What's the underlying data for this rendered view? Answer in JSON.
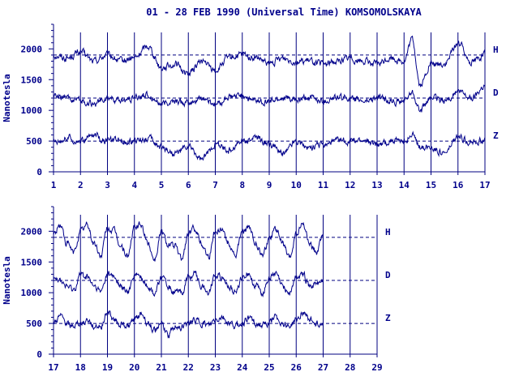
{
  "title": "01 - 28 FEB 1990 (Universal Time) KOMSOMOLSKAYA",
  "colors": {
    "ink": "#000080",
    "text": "#00008b",
    "data": "#00008b"
  },
  "chart_data": [
    {
      "type": "line",
      "title": "01 - 28 FEB 1990 (Universal Time) KOMSOMOLSKAYA",
      "ylabel": "Nanotesla",
      "xlabel": "",
      "xlim": [
        1,
        17
      ],
      "ylim": [
        0,
        2400
      ],
      "yticks": [
        0,
        500,
        1000,
        1500,
        2000
      ],
      "xticks": [
        "1",
        "2",
        "3",
        "4",
        "5",
        "6",
        "7",
        "8",
        "9",
        "10",
        "11",
        "12",
        "13",
        "14",
        "15",
        "16",
        "17"
      ],
      "reference_lines": [
        {
          "component": "H",
          "value": 1900
        },
        {
          "component": "D",
          "value": 1200
        },
        {
          "component": "Z",
          "value": 500
        }
      ],
      "series": [
        {
          "name": "H",
          "baseline": 1900,
          "x": [
            1,
            1.5,
            2,
            2.5,
            3,
            3.5,
            4,
            4.5,
            5,
            5.5,
            6,
            6.5,
            7,
            7.5,
            8,
            8.5,
            9,
            9.5,
            10,
            10.5,
            11,
            11.5,
            12,
            12.5,
            13,
            13.5,
            14,
            14.3,
            14.6,
            15,
            15.5,
            16,
            16.5,
            17
          ],
          "values": [
            1900,
            1850,
            1950,
            1800,
            1900,
            1800,
            1850,
            2050,
            1700,
            1750,
            1600,
            1800,
            1650,
            1850,
            1900,
            1850,
            1750,
            1850,
            1800,
            1800,
            1750,
            1800,
            1850,
            1800,
            1750,
            1850,
            1800,
            2150,
            1400,
            1750,
            1750,
            2100,
            1800,
            1900
          ]
        },
        {
          "name": "D",
          "baseline": 1200,
          "x": [
            1,
            1.5,
            2,
            2.5,
            3,
            3.5,
            4,
            4.5,
            5,
            5.5,
            6,
            6.5,
            7,
            7.5,
            8,
            8.5,
            9,
            9.5,
            10,
            10.5,
            11,
            11.5,
            12,
            12.5,
            13,
            13.5,
            14,
            14.3,
            14.6,
            15,
            15.5,
            16,
            16.5,
            17
          ],
          "values": [
            1250,
            1200,
            1150,
            1100,
            1200,
            1150,
            1200,
            1250,
            1100,
            1150,
            1100,
            1200,
            1100,
            1200,
            1250,
            1150,
            1150,
            1200,
            1150,
            1200,
            1150,
            1200,
            1200,
            1150,
            1200,
            1150,
            1150,
            1300,
            1000,
            1200,
            1150,
            1300,
            1200,
            1400
          ]
        },
        {
          "name": "Z",
          "baseline": 500,
          "x": [
            1,
            1.5,
            2,
            2.5,
            3,
            3.5,
            4,
            4.5,
            5,
            5.5,
            6,
            6.5,
            7,
            7.5,
            8,
            8.5,
            9,
            9.5,
            10,
            10.5,
            11,
            11.5,
            12,
            12.5,
            13,
            13.5,
            14,
            14.3,
            14.6,
            15,
            15.5,
            16,
            16.5,
            17
          ],
          "values": [
            500,
            550,
            500,
            600,
            500,
            500,
            500,
            550,
            400,
            300,
            400,
            200,
            450,
            350,
            500,
            550,
            450,
            300,
            500,
            400,
            450,
            500,
            500,
            500,
            450,
            500,
            500,
            600,
            400,
            400,
            300,
            550,
            500,
            500
          ]
        }
      ]
    },
    {
      "type": "line",
      "title": "",
      "ylabel": "Nanotesla",
      "xlabel": "",
      "xlim": [
        17,
        29
      ],
      "ylim": [
        0,
        2400
      ],
      "yticks": [
        0,
        500,
        1000,
        1500,
        2000
      ],
      "xticks": [
        "17",
        "18",
        "19",
        "20",
        "21",
        "22",
        "23",
        "24",
        "25",
        "26",
        "27",
        "28",
        "29"
      ],
      "reference_lines": [
        {
          "component": "H",
          "value": 1900
        },
        {
          "component": "D",
          "value": 1200
        },
        {
          "component": "Z",
          "value": 500
        }
      ],
      "series": [
        {
          "name": "H",
          "baseline": 1900,
          "x": [
            17,
            17.25,
            17.5,
            17.75,
            18,
            18.25,
            18.5,
            18.75,
            19,
            19.25,
            19.5,
            19.75,
            20,
            20.25,
            20.5,
            20.75,
            21,
            21.25,
            21.5,
            21.75,
            22,
            22.25,
            22.5,
            22.75,
            23,
            23.25,
            23.5,
            23.75,
            24,
            24.25,
            24.5,
            24.75,
            25,
            25.25,
            25.5,
            25.75,
            26,
            26.25,
            26.5,
            26.75,
            27
          ],
          "values": [
            1950,
            2100,
            1800,
            1650,
            2000,
            2100,
            1800,
            1600,
            2050,
            2000,
            1750,
            1600,
            2050,
            2100,
            1800,
            1550,
            2000,
            1800,
            1750,
            1550,
            1950,
            2050,
            1800,
            1600,
            2000,
            2050,
            1800,
            1600,
            2000,
            2050,
            1800,
            1600,
            1900,
            2050,
            1800,
            1550,
            1950,
            2100,
            1800,
            1650,
            1900
          ]
        },
        {
          "name": "D",
          "baseline": 1200,
          "x": [
            17,
            17.25,
            17.5,
            17.75,
            18,
            18.25,
            18.5,
            18.75,
            19,
            19.25,
            19.5,
            19.75,
            20,
            20.25,
            20.5,
            20.75,
            21,
            21.25,
            21.5,
            21.75,
            22,
            22.25,
            22.5,
            22.75,
            23,
            23.25,
            23.5,
            23.75,
            24,
            24.25,
            24.5,
            24.75,
            25,
            25.25,
            25.5,
            25.75,
            26,
            26.25,
            26.5,
            26.75,
            27
          ],
          "values": [
            1300,
            1200,
            1100,
            1050,
            1300,
            1250,
            1100,
            1000,
            1300,
            1250,
            1100,
            1000,
            1300,
            1250,
            1100,
            1000,
            1250,
            1100,
            1000,
            1000,
            1250,
            1300,
            1100,
            1000,
            1300,
            1250,
            1100,
            1000,
            1250,
            1300,
            1100,
            1000,
            1250,
            1300,
            1100,
            1000,
            1250,
            1300,
            1100,
            1150,
            1200
          ]
        },
        {
          "name": "Z",
          "baseline": 500,
          "x": [
            17,
            17.25,
            17.5,
            17.75,
            18,
            18.25,
            18.5,
            18.75,
            19,
            19.25,
            19.5,
            19.75,
            20,
            20.25,
            20.5,
            20.75,
            21,
            21.25,
            21.5,
            21.75,
            22,
            22.25,
            22.5,
            22.75,
            23,
            23.25,
            23.5,
            23.75,
            24,
            24.25,
            24.5,
            24.75,
            25,
            25.25,
            25.5,
            25.75,
            26,
            26.25,
            26.5,
            26.75,
            27
          ],
          "values": [
            500,
            600,
            500,
            450,
            500,
            550,
            450,
            450,
            700,
            550,
            500,
            450,
            550,
            650,
            500,
            400,
            500,
            300,
            450,
            450,
            500,
            550,
            500,
            450,
            550,
            600,
            500,
            450,
            500,
            600,
            500,
            450,
            500,
            600,
            500,
            450,
            550,
            700,
            550,
            500,
            500
          ]
        }
      ]
    }
  ]
}
